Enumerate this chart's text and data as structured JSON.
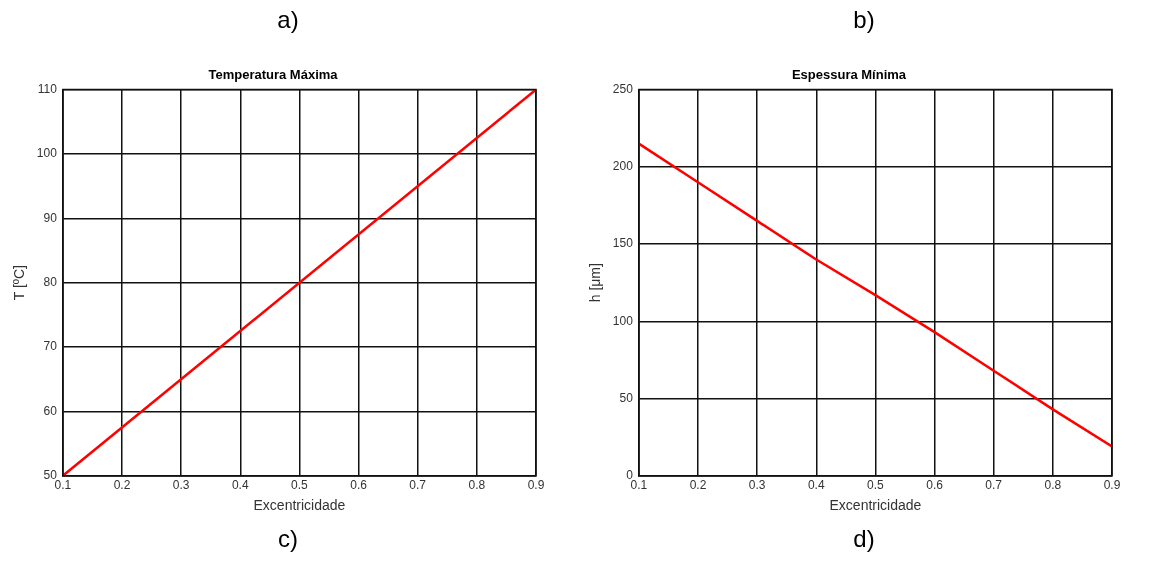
{
  "chart_data": [
    {
      "type": "line",
      "title": "Temperatura Máxima",
      "xlabel": "Excentricidade",
      "ylabel": "T [ºC]",
      "annotations": [
        "a)",
        "c)"
      ],
      "x": [
        0.1,
        0.9
      ],
      "series": [
        {
          "color": "#ff0000",
          "values": [
            50,
            110
          ]
        }
      ],
      "xlim": [
        0.1,
        0.9
      ],
      "xticks": [
        0.1,
        0.2,
        0.3,
        0.4,
        0.5,
        0.6,
        0.7,
        0.8,
        0.9
      ],
      "ylim": [
        50,
        110
      ],
      "yticks": [
        50,
        60,
        70,
        80,
        90,
        100,
        110
      ],
      "grid": true,
      "legend": false,
      "marker": "none",
      "line_style": "solid"
    },
    {
      "type": "line",
      "title": "Espessura Mínima",
      "xlabel": "Excentricidade",
      "ylabel": "h [μm]",
      "annotations": [
        "b)",
        "d)"
      ],
      "x": [
        0.1,
        0.2,
        0.3,
        0.4,
        0.5,
        0.6,
        0.7,
        0.8,
        0.9
      ],
      "series": [
        {
          "color": "#ff0000",
          "values": [
            215,
            190,
            165,
            140,
            117,
            93,
            68,
            43,
            19
          ]
        }
      ],
      "xlim": [
        0.1,
        0.9
      ],
      "xticks": [
        0.1,
        0.2,
        0.3,
        0.4,
        0.5,
        0.6,
        0.7,
        0.8,
        0.9
      ],
      "ylim": [
        0,
        250
      ],
      "yticks": [
        0,
        50,
        100,
        150,
        200,
        250
      ],
      "grid": true,
      "legend": false,
      "marker": "none",
      "line_style": "solid"
    }
  ]
}
